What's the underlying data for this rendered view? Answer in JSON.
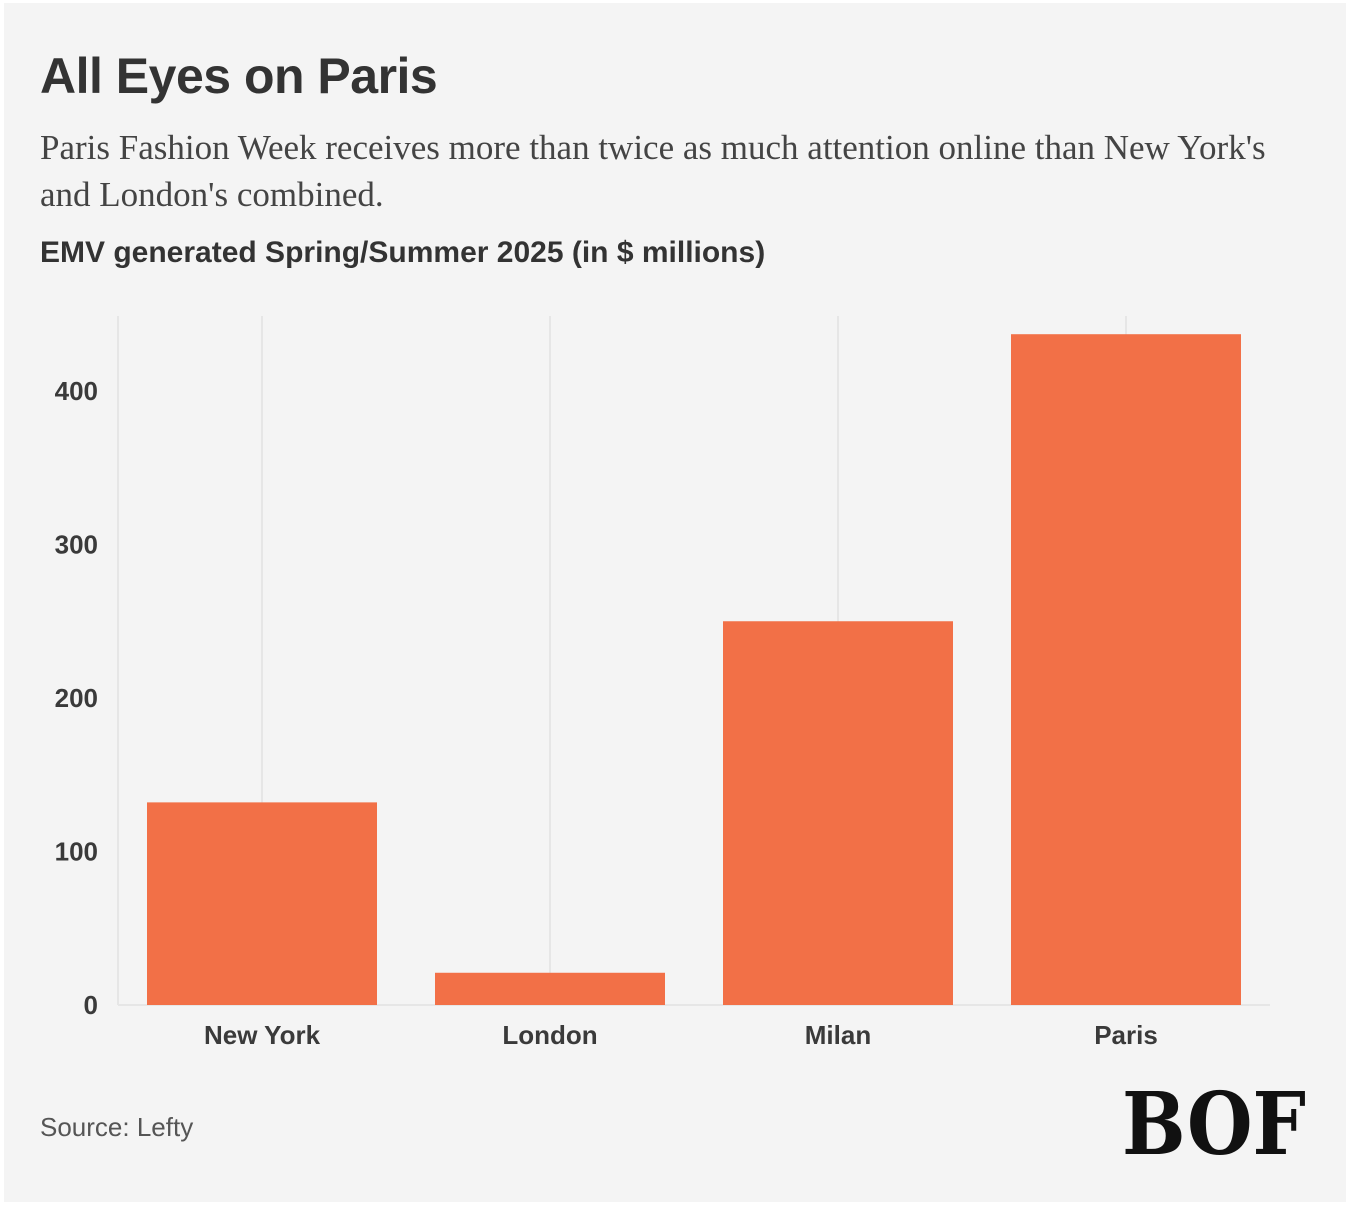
{
  "header": {
    "title": "All Eyes on Paris",
    "subtitle": "Paris Fashion Week receives more than twice as much attention online than New York's and London's combined.",
    "chart_heading": "EMV generated Spring/Summer 2025 (in $ millions)"
  },
  "footer": {
    "source": "Source: Lefty",
    "logo_text": "BOF"
  },
  "colors": {
    "background": "#f4f4f4",
    "bar": "#f27047",
    "grid": "#e6e6e6",
    "text": "#333333"
  },
  "chart_data": {
    "type": "bar",
    "title": "EMV generated Spring/Summer 2025 (in $ millions)",
    "xlabel": "",
    "ylabel": "",
    "categories": [
      "New York",
      "London",
      "Milan",
      "Paris"
    ],
    "values": [
      132,
      21,
      250,
      437
    ],
    "ylim": [
      0,
      450
    ],
    "yticks": [
      0,
      100,
      200,
      300,
      400
    ],
    "grid": true,
    "legend": "none"
  }
}
